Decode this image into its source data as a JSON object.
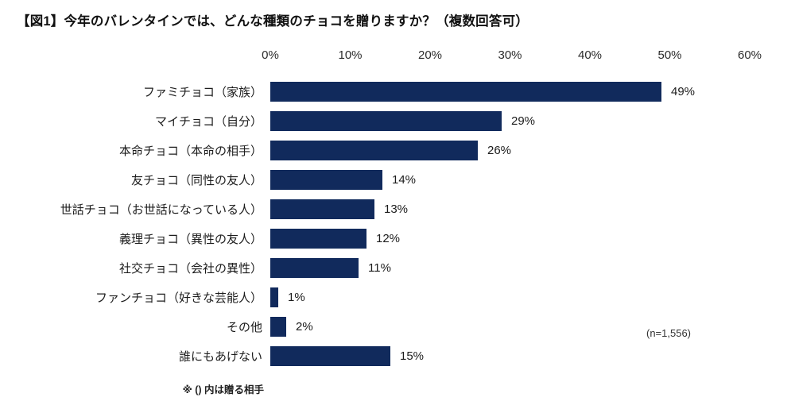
{
  "title": "【図1】今年のバレンタインでは、どんな種類のチョコを贈りますか？（複数回答可）",
  "chart_data": {
    "type": "bar",
    "orientation": "horizontal",
    "title": "【図1】今年のバレンタインでは、どんな種類のチョコを贈りますか？（複数回答可）",
    "categories": [
      "ファミチョコ（家族）",
      "マイチョコ（自分）",
      "本命チョコ（本命の相手）",
      "友チョコ（同性の友人）",
      "世話チョコ（お世話になっている人）",
      "義理チョコ（異性の友人）",
      "社交チョコ（会社の異性）",
      "ファンチョコ（好きな芸能人）",
      "その他",
      "誰にもあげない"
    ],
    "values": [
      49,
      29,
      26,
      14,
      13,
      12,
      11,
      1,
      2,
      15
    ],
    "value_labels": [
      "49%",
      "29%",
      "26%",
      "14%",
      "13%",
      "12%",
      "11%",
      "1%",
      "2%",
      "15%"
    ],
    "x_ticks": [
      "0%",
      "10%",
      "20%",
      "30%",
      "40%",
      "50%",
      "60%"
    ],
    "x_tick_values": [
      0,
      10,
      20,
      30,
      40,
      50,
      60
    ],
    "xlim": [
      0,
      60
    ],
    "grid": false,
    "legend": false,
    "bar_color": "#112A5C",
    "sample_size_label": "(n=1,556)",
    "footnote": "※ () 内は贈る相手"
  }
}
